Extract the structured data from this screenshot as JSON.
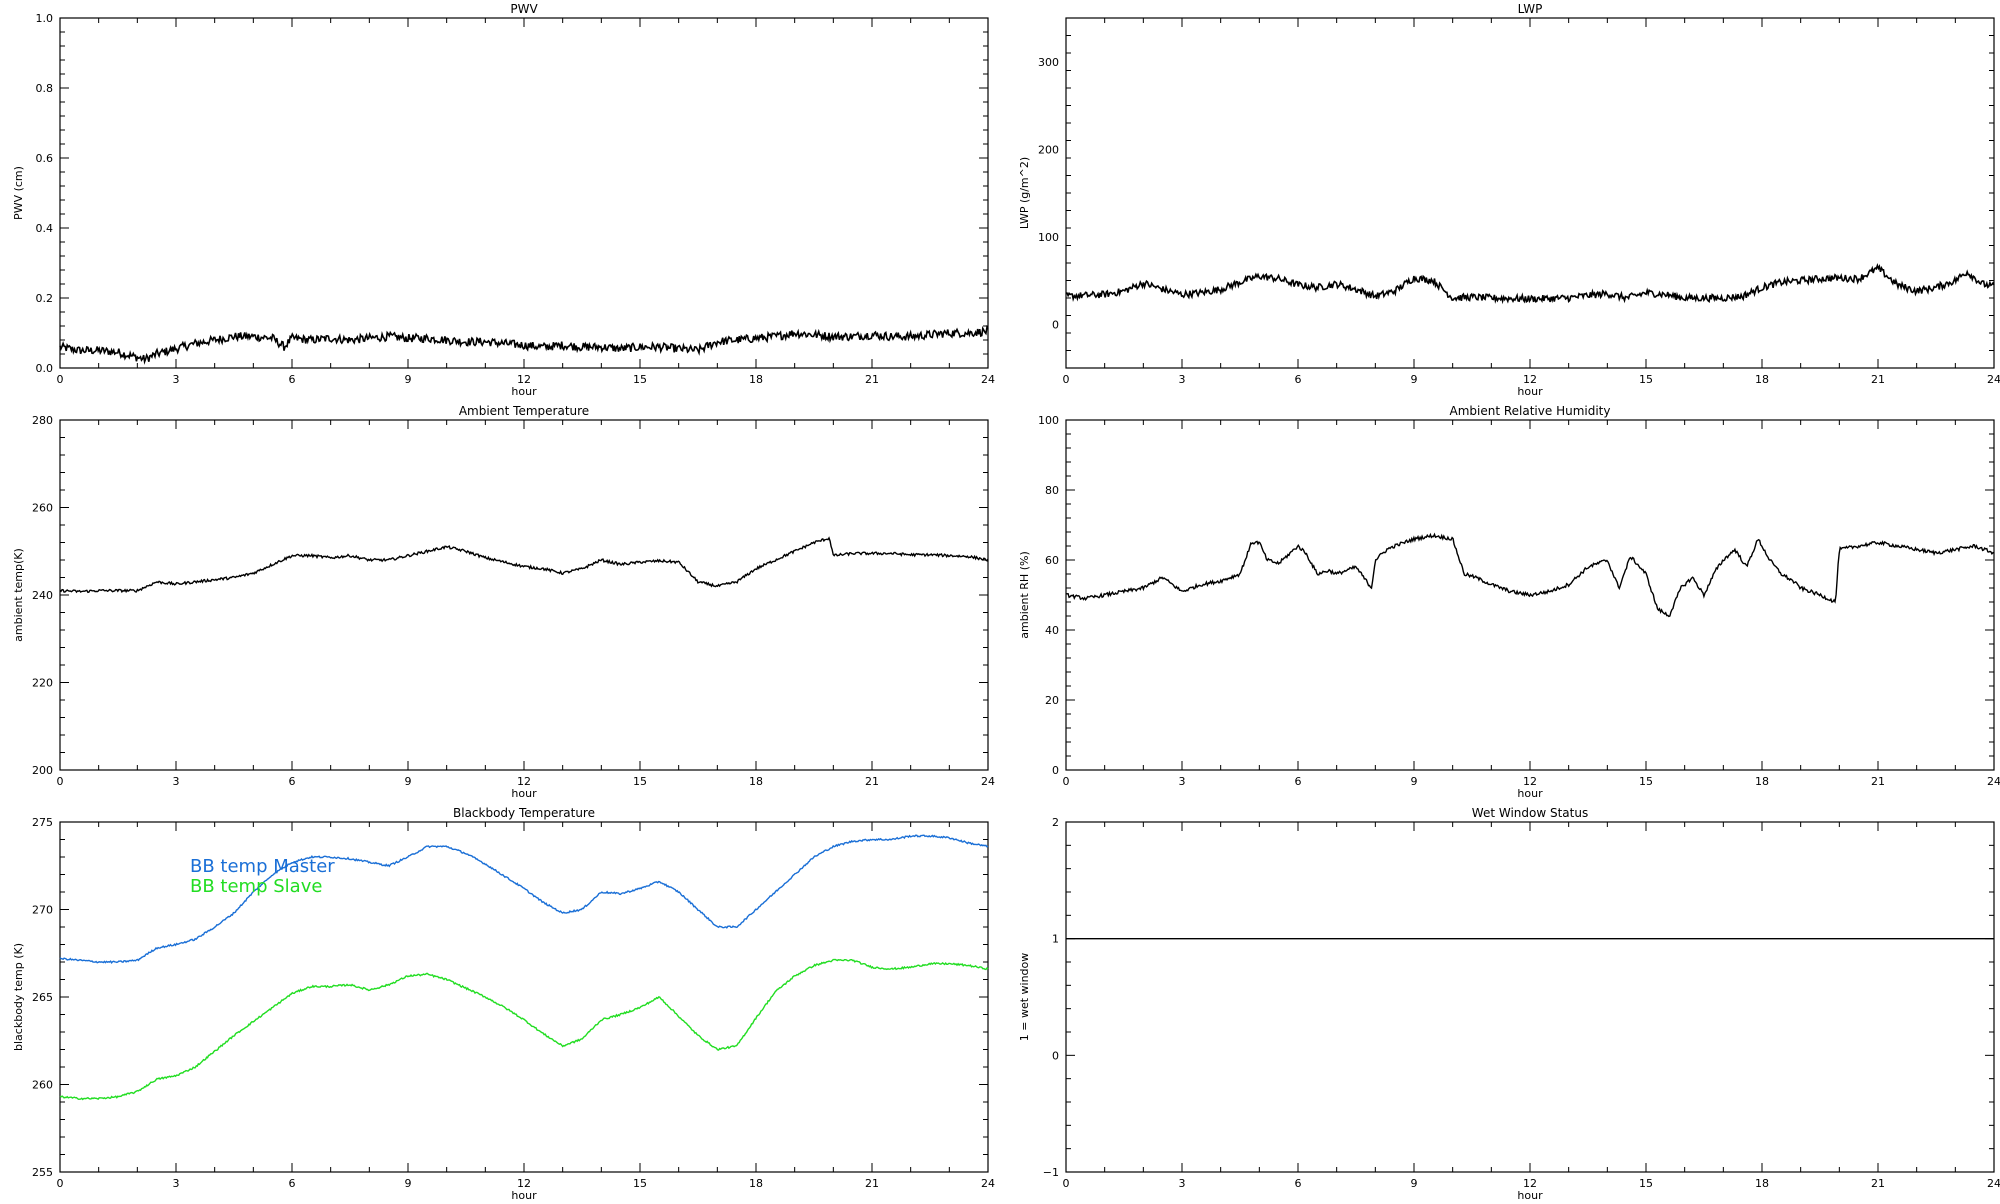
{
  "chart_data": [
    {
      "type": "line",
      "title": "PWV",
      "xlabel": "hour",
      "ylabel": "PWV (cm)",
      "xlim": [
        0,
        24
      ],
      "ylim": [
        0,
        1.0
      ],
      "xticks": [
        "0",
        "3",
        "6",
        "9",
        "12",
        "15",
        "18",
        "21",
        "24"
      ],
      "yticks": [
        "0.0",
        "0.2",
        "0.4",
        "0.6",
        "0.8",
        "1.0"
      ],
      "noise": 0.012,
      "series": [
        {
          "color": "#000000",
          "x": [
            0,
            0.5,
            1,
            1.5,
            2,
            2.2,
            2.5,
            3,
            3.5,
            4,
            4.5,
            5,
            5.5,
            5.8,
            6,
            6.5,
            7,
            7.5,
            8,
            8.5,
            9,
            9.5,
            10,
            10.5,
            11,
            11.5,
            12,
            12.5,
            13,
            13.5,
            14,
            14.5,
            15,
            15.5,
            16,
            16.5,
            17,
            17.5,
            18,
            18.5,
            19,
            19.5,
            20,
            20.5,
            21,
            21.5,
            22,
            22.5,
            23,
            23.5,
            24
          ],
          "y": [
            0.06,
            0.05,
            0.05,
            0.045,
            0.03,
            0.025,
            0.04,
            0.055,
            0.07,
            0.08,
            0.09,
            0.09,
            0.085,
            0.06,
            0.085,
            0.08,
            0.085,
            0.08,
            0.085,
            0.09,
            0.085,
            0.085,
            0.08,
            0.075,
            0.075,
            0.07,
            0.065,
            0.06,
            0.065,
            0.06,
            0.06,
            0.055,
            0.06,
            0.06,
            0.055,
            0.05,
            0.075,
            0.08,
            0.085,
            0.09,
            0.1,
            0.095,
            0.09,
            0.09,
            0.095,
            0.09,
            0.09,
            0.095,
            0.1,
            0.1,
            0.105
          ]
        }
      ]
    },
    {
      "type": "line",
      "title": "LWP",
      "xlabel": "hour",
      "ylabel": "LWP (g/m^2)",
      "xlim": [
        0,
        24
      ],
      "ylim": [
        -50,
        350
      ],
      "xticks": [
        "0",
        "3",
        "6",
        "9",
        "12",
        "15",
        "18",
        "21",
        "24"
      ],
      "yticks": [
        "0",
        "100",
        "200",
        "300"
      ],
      "noise": 4,
      "series": [
        {
          "color": "#000000",
          "x": [
            0,
            1,
            1.5,
            2,
            2.5,
            3,
            3.5,
            4,
            4.5,
            5,
            5.5,
            6,
            6.5,
            7,
            7.5,
            8,
            8.5,
            9,
            9.5,
            10,
            10.5,
            11,
            12,
            13,
            13.5,
            14,
            14.5,
            15,
            15.5,
            16,
            17,
            17.5,
            18,
            18.5,
            19,
            19.5,
            20,
            20.5,
            21,
            21.5,
            22,
            22.5,
            23,
            23.3,
            23.7,
            24
          ],
          "y": [
            32,
            34,
            38,
            47,
            40,
            34,
            36,
            40,
            48,
            55,
            52,
            45,
            42,
            46,
            40,
            32,
            38,
            53,
            50,
            30,
            31,
            30,
            29,
            30,
            33,
            35,
            30,
            36,
            34,
            30,
            30,
            32,
            42,
            48,
            50,
            52,
            53,
            52,
            64,
            45,
            38,
            42,
            50,
            60,
            46,
            43
          ]
        }
      ]
    },
    {
      "type": "line",
      "title": "Ambient Temperature",
      "xlabel": "hour",
      "ylabel": "ambient temp(K)",
      "xlim": [
        0,
        24
      ],
      "ylim": [
        200,
        280
      ],
      "xticks": [
        "0",
        "3",
        "6",
        "9",
        "12",
        "15",
        "18",
        "21",
        "24"
      ],
      "yticks": [
        "200",
        "220",
        "240",
        "260",
        "280"
      ],
      "noise": 0.3,
      "series": [
        {
          "color": "#000000",
          "x": [
            0,
            0.5,
            1,
            1.5,
            2,
            2.5,
            3,
            3.5,
            4,
            4.5,
            5,
            5.5,
            6,
            6.5,
            7,
            7.5,
            8,
            8.5,
            9,
            9.5,
            10,
            10.5,
            11,
            11.5,
            12,
            12.5,
            13,
            13.5,
            14,
            14.5,
            15,
            15.5,
            16,
            16.5,
            17,
            17.5,
            18,
            18.5,
            19,
            19.5,
            19.9,
            20,
            20.5,
            21,
            21.5,
            22,
            22.5,
            23,
            23.5,
            24
          ],
          "y": [
            241,
            240.8,
            241,
            241,
            241,
            243,
            242.5,
            243,
            243.5,
            244,
            245,
            247,
            249,
            249,
            248.5,
            249,
            248,
            248,
            249,
            250,
            251,
            250,
            248.5,
            247.5,
            246.5,
            246,
            245,
            246,
            248,
            247,
            247.5,
            247.8,
            247.5,
            243,
            242,
            243,
            246,
            248,
            250,
            252,
            253,
            249,
            249.5,
            249.5,
            249.5,
            249.2,
            249.2,
            249,
            248.8,
            248
          ]
        }
      ]
    },
    {
      "type": "line",
      "title": "Ambient Relative Humidity",
      "xlabel": "hour",
      "ylabel": "ambient RH (%)",
      "xlim": [
        0,
        24
      ],
      "ylim": [
        0,
        100
      ],
      "xticks": [
        "0",
        "3",
        "6",
        "9",
        "12",
        "15",
        "18",
        "21",
        "24"
      ],
      "yticks": [
        "0",
        "20",
        "40",
        "60",
        "80",
        "100"
      ],
      "noise": 0.5,
      "series": [
        {
          "color": "#000000",
          "x": [
            0,
            0.5,
            1,
            1.5,
            2,
            2.5,
            3,
            3.5,
            4,
            4.5,
            4.8,
            5,
            5.2,
            5.5,
            6,
            6.2,
            6.5,
            6.8,
            7,
            7.5,
            7.9,
            8,
            8.3,
            8.5,
            9,
            9.5,
            10,
            10.3,
            10.6,
            11,
            11.5,
            12,
            12.5,
            13,
            13.5,
            14,
            14.3,
            14.6,
            15,
            15.3,
            15.6,
            15.9,
            16.2,
            16.5,
            16.8,
            17,
            17.3,
            17.6,
            17.9,
            18.2,
            18.5,
            18.8,
            19,
            19.5,
            19.9,
            20,
            20.5,
            21,
            21.5,
            22,
            22.5,
            23,
            23.5,
            24
          ],
          "y": [
            50,
            49,
            50,
            51,
            52,
            55,
            51,
            53,
            54,
            56,
            65,
            65,
            60,
            59,
            64,
            62,
            56,
            57,
            56,
            58,
            52,
            60,
            63,
            64,
            66,
            67,
            66,
            56,
            55,
            53,
            51,
            50,
            51,
            53,
            58,
            60,
            52,
            61,
            56,
            46,
            44,
            52,
            55,
            50,
            57,
            60,
            63,
            58,
            66,
            60,
            56,
            54,
            52,
            50,
            48,
            63,
            64,
            65,
            64,
            63,
            62,
            63,
            64,
            62
          ]
        }
      ]
    },
    {
      "type": "line",
      "title": "Blackbody Temperature",
      "xlabel": "hour",
      "ylabel": "blackbody temp (K)",
      "xlim": [
        0,
        24
      ],
      "ylim": [
        255,
        275
      ],
      "xticks": [
        "0",
        "3",
        "6",
        "9",
        "12",
        "15",
        "18",
        "21",
        "24"
      ],
      "yticks": [
        "255",
        "260",
        "265",
        "270",
        "275"
      ],
      "noise": 0.05,
      "legend": "top-left",
      "series": [
        {
          "name": "BB temp Master",
          "color": "#1a6fd6",
          "x": [
            0,
            0.5,
            1,
            1.5,
            2,
            2.5,
            3,
            3.5,
            4,
            4.5,
            5,
            5.5,
            6,
            6.5,
            7,
            7.5,
            8,
            8.5,
            9,
            9.5,
            10,
            10.5,
            11,
            11.5,
            12,
            12.5,
            13,
            13.5,
            14,
            14.5,
            15,
            15.5,
            16,
            16.5,
            17,
            17.5,
            18,
            18.5,
            19,
            19.5,
            20,
            20.5,
            21,
            21.5,
            22,
            22.5,
            23,
            23.5,
            24
          ],
          "y": [
            267.2,
            267.1,
            267,
            267,
            267.1,
            267.8,
            268,
            268.3,
            269,
            269.8,
            271,
            272,
            272.7,
            273,
            273,
            272.9,
            272.7,
            272.5,
            273,
            273.6,
            273.6,
            273.2,
            272.6,
            271.9,
            271.2,
            270.4,
            269.8,
            270,
            271,
            270.9,
            271.2,
            271.6,
            271,
            270,
            269,
            269,
            270,
            271,
            272,
            273,
            273.6,
            273.9,
            274,
            274,
            274.2,
            274.2,
            274.1,
            273.8,
            273.6
          ]
        },
        {
          "name": "BB temp Slave",
          "color": "#22dd22",
          "x": [
            0,
            0.5,
            1,
            1.5,
            2,
            2.5,
            3,
            3.5,
            4,
            4.5,
            5,
            5.5,
            6,
            6.5,
            7,
            7.5,
            8,
            8.5,
            9,
            9.5,
            10,
            10.5,
            11,
            11.5,
            12,
            12.5,
            13,
            13.5,
            14,
            14.5,
            15,
            15.5,
            16,
            16.5,
            17,
            17.5,
            18,
            18.5,
            19,
            19.5,
            20,
            20.5,
            21,
            21.5,
            22,
            22.5,
            23,
            23.5,
            24
          ],
          "y": [
            259.3,
            259.2,
            259.2,
            259.3,
            259.6,
            260.3,
            260.5,
            261,
            261.9,
            262.8,
            263.6,
            264.4,
            265.2,
            265.6,
            265.6,
            265.7,
            265.4,
            265.7,
            266.2,
            266.3,
            266,
            265.5,
            265,
            264.4,
            263.7,
            262.9,
            262.2,
            262.6,
            263.7,
            264,
            264.4,
            265,
            263.9,
            262.8,
            262,
            262.2,
            263.8,
            265.3,
            266.2,
            266.8,
            267.1,
            267.1,
            266.7,
            266.6,
            266.7,
            266.9,
            266.9,
            266.8,
            266.6
          ]
        }
      ]
    },
    {
      "type": "line",
      "title": "Wet Window Status",
      "xlabel": "hour",
      "ylabel": "1 = wet window",
      "xlim": [
        0,
        24
      ],
      "ylim": [
        -1,
        2
      ],
      "xticks": [
        "0",
        "3",
        "6",
        "9",
        "12",
        "15",
        "18",
        "21",
        "24"
      ],
      "yticks": [
        "−1",
        "0",
        "1",
        "2"
      ],
      "noise": 0,
      "series": [
        {
          "color": "#000000",
          "x": [
            0,
            24
          ],
          "y": [
            1,
            1
          ]
        }
      ]
    }
  ]
}
